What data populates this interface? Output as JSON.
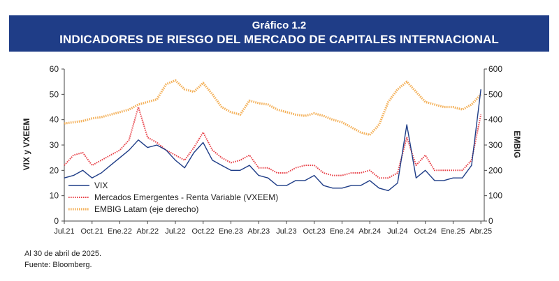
{
  "header": {
    "title": "Gráfico 1.2",
    "subtitle": "INDICADORES DE RIESGO DEL MERCADO DE CAPITALES INTERNACIONAL"
  },
  "footer": {
    "note": "Al 30 de abril de 2025.",
    "source": "Fuente: Bloomberg."
  },
  "colors": {
    "banner": "#1f3d87",
    "vix": "#1f3d87",
    "vxeem": "#e8434a",
    "embig": "#f4b15a"
  },
  "chart_data": {
    "type": "line",
    "ylabel": "VIX y VXEEM",
    "y2label": "EMBIG",
    "ylim": [
      0,
      60
    ],
    "y2lim": [
      0,
      600
    ],
    "yticks": [
      "0",
      "10",
      "20",
      "30",
      "40",
      "50",
      "60"
    ],
    "y2ticks": [
      "0",
      "100",
      "200",
      "300",
      "400",
      "500",
      "600"
    ],
    "xticks": [
      "Jul.21",
      "Oct.21",
      "Ene.22",
      "Abr.22",
      "Jul.22",
      "Oct.22",
      "Ene.23",
      "Abr.23",
      "Jul.23",
      "Oct.23",
      "Ene.24",
      "Abr.24",
      "Jul.24",
      "Oct.24",
      "Ene.25",
      "Abr.25"
    ],
    "legend_position": "bottom-left",
    "series": [
      {
        "name": "VIX",
        "axis": "left",
        "style": "solid",
        "x": [
          "2021-07",
          "2021-08",
          "2021-09",
          "2021-10",
          "2021-11",
          "2021-12",
          "2022-01",
          "2022-02",
          "2022-03",
          "2022-04",
          "2022-05",
          "2022-06",
          "2022-07",
          "2022-08",
          "2022-09",
          "2022-10",
          "2022-11",
          "2022-12",
          "2023-01",
          "2023-02",
          "2023-03",
          "2023-04",
          "2023-05",
          "2023-06",
          "2023-07",
          "2023-08",
          "2023-09",
          "2023-10",
          "2023-11",
          "2023-12",
          "2024-01",
          "2024-02",
          "2024-03",
          "2024-04",
          "2024-05",
          "2024-06",
          "2024-07",
          "2024-08",
          "2024-09",
          "2024-10",
          "2024-11",
          "2024-12",
          "2025-01",
          "2025-02",
          "2025-03",
          "2025-04"
        ],
        "values": [
          17,
          18,
          20,
          17,
          19,
          22,
          25,
          28,
          32,
          29,
          30,
          28,
          24,
          21,
          27,
          31,
          24,
          22,
          20,
          20,
          22,
          18,
          17,
          14,
          14,
          16,
          16,
          18,
          14,
          13,
          13,
          14,
          14,
          16,
          13,
          12,
          15,
          38,
          17,
          20,
          16,
          16,
          17,
          17,
          22,
          52
        ]
      },
      {
        "name": "Mercados Emergentes - Renta Variable (VXEEM)",
        "axis": "left",
        "style": "dotted",
        "x": [
          "2021-07",
          "2021-08",
          "2021-09",
          "2021-10",
          "2021-11",
          "2021-12",
          "2022-01",
          "2022-02",
          "2022-03",
          "2022-04",
          "2022-05",
          "2022-06",
          "2022-07",
          "2022-08",
          "2022-09",
          "2022-10",
          "2022-11",
          "2022-12",
          "2023-01",
          "2023-02",
          "2023-03",
          "2023-04",
          "2023-05",
          "2023-06",
          "2023-07",
          "2023-08",
          "2023-09",
          "2023-10",
          "2023-11",
          "2023-12",
          "2024-01",
          "2024-02",
          "2024-03",
          "2024-04",
          "2024-05",
          "2024-06",
          "2024-07",
          "2024-08",
          "2024-09",
          "2024-10",
          "2024-11",
          "2024-12",
          "2025-01",
          "2025-02",
          "2025-03",
          "2025-04"
        ],
        "values": [
          22,
          26,
          27,
          22,
          24,
          26,
          28,
          32,
          45,
          33,
          31,
          28,
          26,
          24,
          29,
          35,
          28,
          25,
          23,
          24,
          26,
          21,
          21,
          19,
          19,
          21,
          22,
          22,
          19,
          18,
          18,
          19,
          19,
          20,
          17,
          17,
          19,
          33,
          22,
          26,
          20,
          20,
          20,
          20,
          24,
          42
        ]
      },
      {
        "name": "EMBIG Latam (eje derecho)",
        "axis": "right",
        "style": "dotted-thick",
        "x": [
          "2021-07",
          "2021-08",
          "2021-09",
          "2021-10",
          "2021-11",
          "2021-12",
          "2022-01",
          "2022-02",
          "2022-03",
          "2022-04",
          "2022-05",
          "2022-06",
          "2022-07",
          "2022-08",
          "2022-09",
          "2022-10",
          "2022-11",
          "2022-12",
          "2023-01",
          "2023-02",
          "2023-03",
          "2023-04",
          "2023-05",
          "2023-06",
          "2023-07",
          "2023-08",
          "2023-09",
          "2023-10",
          "2023-11",
          "2023-12",
          "2024-01",
          "2024-02",
          "2024-03",
          "2024-04",
          "2024-05",
          "2024-06",
          "2024-07",
          "2024-08",
          "2024-09",
          "2024-10",
          "2024-11",
          "2024-12",
          "2025-01",
          "2025-02",
          "2025-03",
          "2025-04"
        ],
        "values": [
          385,
          390,
          395,
          405,
          410,
          420,
          430,
          440,
          460,
          470,
          480,
          540,
          555,
          520,
          510,
          545,
          500,
          450,
          430,
          420,
          475,
          465,
          460,
          440,
          430,
          420,
          415,
          425,
          415,
          400,
          390,
          370,
          350,
          340,
          380,
          470,
          520,
          550,
          510,
          470,
          460,
          450,
          450,
          440,
          460,
          500
        ]
      }
    ]
  }
}
